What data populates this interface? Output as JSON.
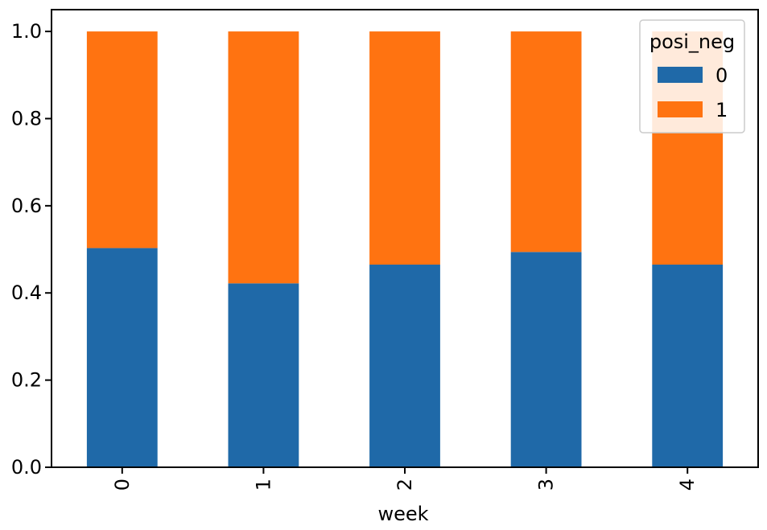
{
  "chart_data": {
    "type": "bar",
    "stacked": true,
    "categories": [
      "0",
      "1",
      "2",
      "3",
      "4"
    ],
    "series": [
      {
        "name": "0",
        "values": [
          0.503,
          0.422,
          0.465,
          0.494,
          0.465
        ],
        "color": "#1f69a8"
      },
      {
        "name": "1",
        "values": [
          0.497,
          0.578,
          0.535,
          0.506,
          0.535
        ],
        "color": "#ff7311"
      }
    ],
    "xlabel": "week",
    "ylabel": "",
    "ylim": [
      0,
      1.05
    ],
    "yticks": [
      "0.0",
      "0.2",
      "0.4",
      "0.6",
      "0.8",
      "1.0"
    ],
    "grid": false,
    "legend": {
      "title": "posi_neg",
      "placement": "top-right"
    },
    "x_tick_rotation": "vertical"
  }
}
